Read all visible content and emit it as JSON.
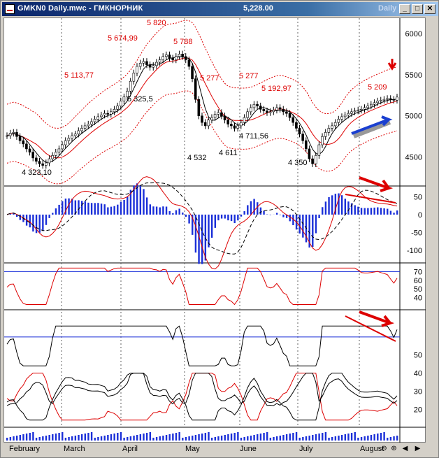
{
  "window": {
    "title": "GMKN0 Daily.mwc - ГМКНОРНИК",
    "price": "5,228.00",
    "period": "Daily",
    "buttons": {
      "restore": "▭",
      "maximize": "□",
      "close": "✕"
    }
  },
  "chart_data": [
    {
      "type": "candlestick",
      "title": "",
      "price_axis": [
        "6000",
        "5500",
        "5000",
        "4500"
      ],
      "annotations": [
        "5 820",
        "5 674,99",
        "5 788",
        "5 113,77",
        "5 325,5",
        "5 277",
        "5 277",
        "5 192,97",
        "5 209",
        "4 711,56",
        "4 532",
        "4 611",
        "4 350",
        "4 323,10"
      ],
      "ylim": [
        4150,
        6100
      ],
      "closes": [
        4760,
        4790,
        4800,
        4750,
        4700,
        4660,
        4600,
        4560,
        4490,
        4450,
        4420,
        4400,
        4430,
        4480,
        4520,
        4560,
        4600,
        4650,
        4700,
        4730,
        4760,
        4780,
        4820,
        4850,
        4880,
        4900,
        4930,
        4960,
        4990,
        5010,
        5030,
        5020,
        5050,
        5080,
        5120,
        5180,
        5230,
        5300,
        5420,
        5520,
        5600,
        5640,
        5660,
        5620,
        5590,
        5610,
        5650,
        5680,
        5720,
        5740,
        5700,
        5680,
        5720,
        5750,
        5720,
        5680,
        5600,
        5450,
        5200,
        5000,
        4920,
        4880,
        4950,
        4980,
        5020,
        5040,
        5000,
        4950,
        4900,
        4880,
        4850,
        4880,
        4920,
        4980,
        5050,
        5100,
        5140,
        5120,
        5080,
        5060,
        5040,
        5050,
        5070,
        5100,
        5080,
        5050,
        5030,
        4980,
        4920,
        4850,
        4780,
        4700,
        4600,
        4480,
        4420,
        4520,
        4650,
        4750,
        4800,
        4850,
        4880,
        4920,
        4960,
        4990,
        5010,
        5030,
        5050,
        5060,
        5070,
        5080,
        5100,
        5120,
        5140,
        5160,
        5180,
        5190,
        5200,
        5210,
        5200,
        5190,
        5228
      ]
    },
    {
      "type": "histogram",
      "title": "",
      "axis": [
        "50",
        "0",
        "-50",
        "-100"
      ],
      "ylim": [
        -125,
        70
      ]
    },
    {
      "type": "line",
      "title": "",
      "axis": [
        "70",
        "60",
        "50",
        "40"
      ],
      "ylim": [
        30,
        80
      ]
    },
    {
      "type": "line",
      "title": "",
      "axis": [
        "50",
        "40",
        "30",
        "20"
      ],
      "ylim": [
        12,
        70
      ]
    }
  ],
  "months": [
    "February",
    "March",
    "April",
    "May",
    "June",
    "July",
    "August"
  ],
  "nav": {
    "zoom_in": "⊕",
    "zoom_out": "⊖",
    "reset": "↻",
    "left": "◀",
    "right": "▶"
  }
}
